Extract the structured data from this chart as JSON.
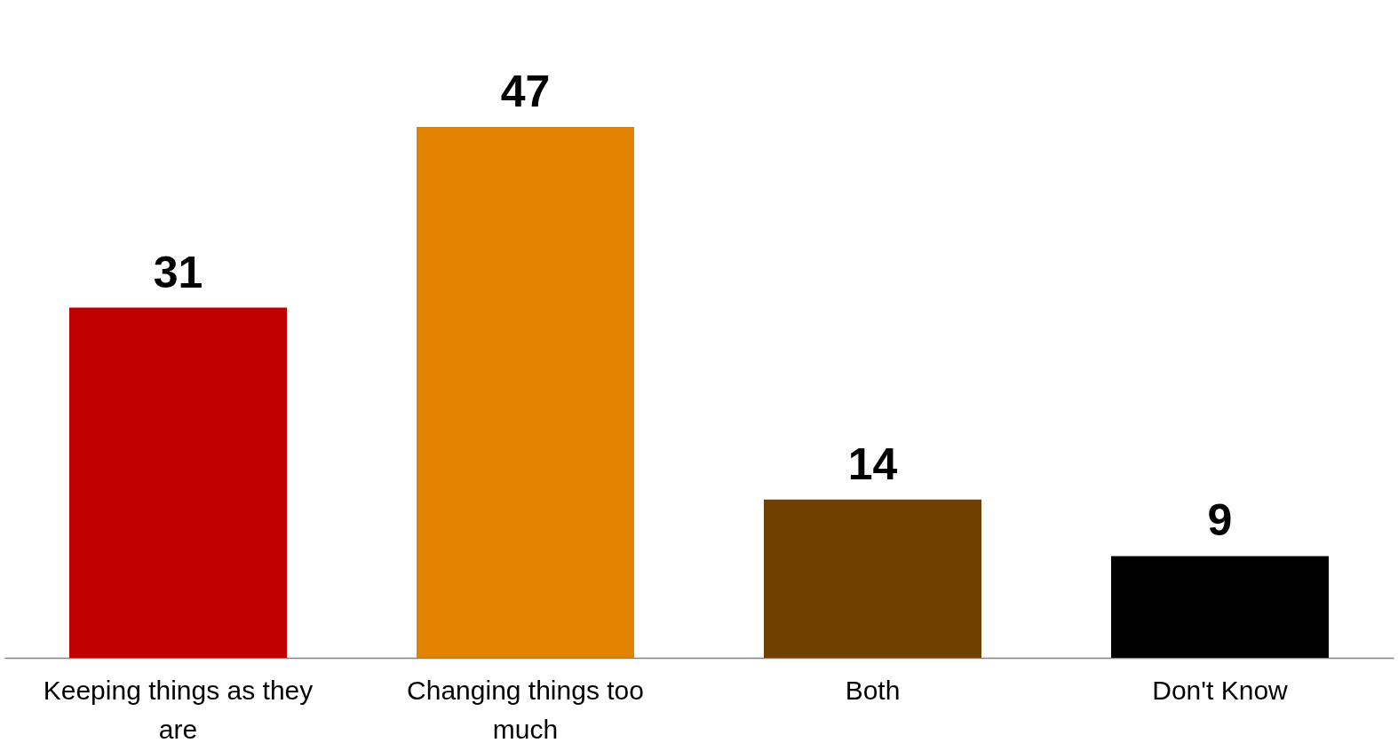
{
  "chart_data": {
    "type": "bar",
    "categories": [
      "Keeping things as they are",
      "Changing things too much",
      "Both",
      "Don't Know"
    ],
    "values": [
      31,
      47,
      14,
      9
    ],
    "colors": [
      "#c00000",
      "#df8300",
      "#704000",
      "#000000"
    ],
    "data_labels": true,
    "grid": false
  }
}
